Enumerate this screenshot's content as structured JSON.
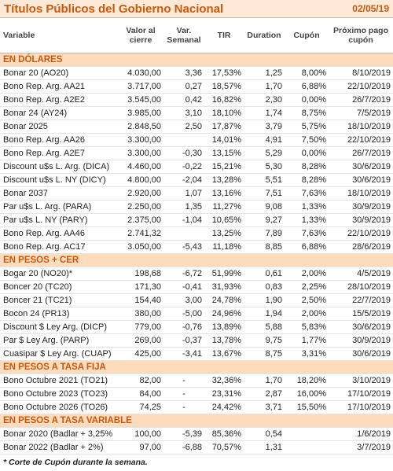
{
  "header": {
    "title": "Títulos Públicos del Gobierno Nacional",
    "date": "02/05/19"
  },
  "columns": [
    "Variable",
    "Valor al cierre",
    "Var. Semanal",
    "TIR",
    "Duration",
    "Cupón",
    "Próximo pago cupón"
  ],
  "sections": [
    {
      "title": "EN DÓLARES",
      "rows": [
        [
          "Bonar 20 (AO20)",
          "4.030,00",
          "3,36",
          "17,53%",
          "1,25",
          "8,00%",
          "8/10/2019"
        ],
        [
          "Bono Rep. Arg. AA21",
          "3.717,00",
          "0,27",
          "18,57%",
          "1,70",
          "6,88%",
          "22/10/2019"
        ],
        [
          "Bono Rep. Arg. A2E2",
          "3.545,00",
          "0,42",
          "16,82%",
          "2,30",
          "0,00%",
          "26/7/2019"
        ],
        [
          "Bonar 24 (AY24)",
          "3.985,00",
          "3,10",
          "18,10%",
          "1,74",
          "8,75%",
          "7/5/2019"
        ],
        [
          "Bonar 2025",
          "2.848,50",
          "2,50",
          "17,87%",
          "3,79",
          "5,75%",
          "18/10/2019"
        ],
        [
          "Bono Rep. Arg. AA26",
          "3.300,00",
          null,
          "14,01%",
          "4,91",
          "7,50%",
          "22/10/2019"
        ],
        [
          "Bono Rep. Arg. A2E7",
          "3.300,00",
          "-0,30",
          "13,15%",
          "5,29",
          "0,00%",
          "26/7/2019"
        ],
        [
          "Discount u$s L. Arg. (DICA)",
          "4.460,00",
          "-0,22",
          "15,21%",
          "5,30",
          "8,28%",
          "30/6/2019"
        ],
        [
          "Discount u$s L. NY (DICY)",
          "4.800,00",
          "-2,04",
          "13,28%",
          "5,51",
          "8,28%",
          "30/6/2019"
        ],
        [
          "Bonar 2037",
          "2.920,00",
          "1,07",
          "13,16%",
          "7,51",
          "7,63%",
          "18/10/2019"
        ],
        [
          "Par u$s L. Arg. (PARA)",
          "2.250,00",
          "1,35",
          "11,27%",
          "9,08",
          "1,33%",
          "30/9/2019"
        ],
        [
          "Par u$s L. NY (PARY)",
          "2.375,00",
          "-1,04",
          "10,65%",
          "9,27",
          "1,33%",
          "30/9/2019"
        ],
        [
          "Bono Rep. Arg. AA46",
          "2.741,32",
          null,
          "13,25%",
          "7,89",
          "7,63%",
          "22/10/2019"
        ],
        [
          "Bono Rep. Arg. AC17",
          "3.050,00",
          "-5,43",
          "11,18%",
          "8,85",
          "6,88%",
          "28/6/2019"
        ]
      ]
    },
    {
      "title": "EN PESOS + CER",
      "rows": [
        [
          "Bogar 20 (NO20)*",
          "198,68",
          "-6,72",
          "51,99%",
          "0,61",
          "2,00%",
          "4/5/2019"
        ],
        [
          "Boncer 20 (TC20)",
          "171,30",
          "-0,41",
          "31,93%",
          "0,83",
          "2,25%",
          "28/10/2019"
        ],
        [
          "Boncer 21 (TC21)",
          "154,40",
          "3,00",
          "24,78%",
          "1,90",
          "2,50%",
          "22/7/2019"
        ],
        [
          "Bocon 24 (PR13)",
          "380,00",
          "-5,00",
          "24,96%",
          "1,94",
          "2,00%",
          "15/5/2019"
        ],
        [
          "Discount $ Ley Arg. (DICP)",
          "779,00",
          "-0,76",
          "13,89%",
          "5,88",
          "5,83%",
          "30/6/2019"
        ],
        [
          "Par $ Ley Arg. (PARP)",
          "269,00",
          "-0,37",
          "13,78%",
          "9,75",
          "1,77%",
          "30/9/2019"
        ],
        [
          "Cuasipar $ Ley Arg. (CUAP)",
          "425,00",
          "-3,41",
          "13,67%",
          "8,75",
          "3,31%",
          "30/6/2019"
        ]
      ]
    },
    {
      "title": "EN PESOS A TASA FIJA",
      "rows": [
        [
          "Bono Octubre 2021 (TO21)",
          "82,00",
          "-",
          "32,36%",
          "1,70",
          "18,20%",
          "3/10/2019"
        ],
        [
          "Bono Octubre 2023 (TO23)",
          "84,00",
          "-",
          "23,31%",
          "2,87",
          "16,00%",
          "17/10/2019"
        ],
        [
          "Bono Octubre 2026 (TO26)",
          "74,25",
          "-",
          "24,42%",
          "3,71",
          "15,50%",
          "17/10/2019"
        ]
      ]
    },
    {
      "title": "EN PESOS A TASA VARIABLE",
      "rows": [
        [
          "Bonar 2020 (Badlar + 3,25%",
          "100,00",
          "-5,39",
          "85,36%",
          "0,54",
          null,
          "1/6/2019"
        ],
        [
          "Bonar 2022 (Badlar + 2%)",
          "97,00",
          "-6,88",
          "70,57%",
          "1,31",
          null,
          "3/7/2019"
        ]
      ]
    }
  ],
  "footnote": "* Corte de Cupón durante la semana."
}
